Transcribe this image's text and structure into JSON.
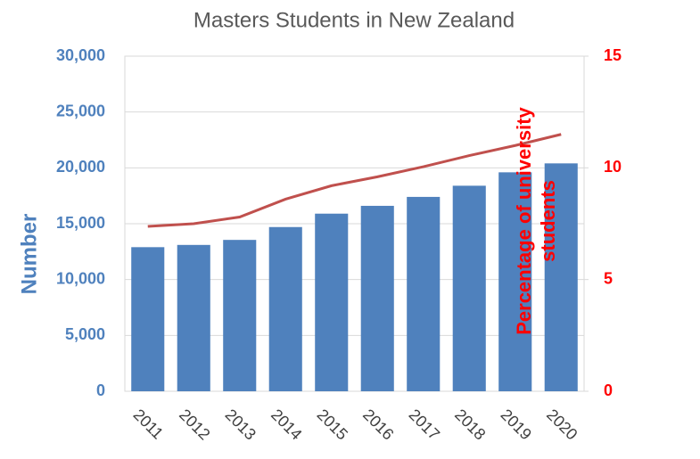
{
  "chart_data": {
    "type": "bar",
    "title": "Masters Students in New Zealand",
    "ylabel": "Number",
    "y2label": "Percentage of university students",
    "categories": [
      "2011",
      "2012",
      "2013",
      "2014",
      "2015",
      "2016",
      "2017",
      "2018",
      "2019",
      "2020"
    ],
    "series": [
      {
        "type": "bar",
        "color": "#4f81bd",
        "values": [
          12900,
          13100,
          13550,
          14700,
          15900,
          16600,
          17400,
          18400,
          19600,
          20400
        ]
      },
      {
        "type": "line",
        "axis": "y2",
        "color": "#c0504d",
        "values": [
          7.38,
          7.5,
          7.8,
          8.6,
          9.2,
          9.6,
          10.05,
          10.55,
          11.0,
          11.5
        ]
      }
    ],
    "ylim": [
      0,
      30000
    ],
    "yticks": [
      0,
      {
        "value": 5000,
        "label": "5,000"
      },
      {
        "value": 10000,
        "label": "10,000"
      },
      {
        "value": 15000,
        "label": "15,000"
      },
      {
        "value": 20000,
        "label": "20,000"
      },
      {
        "value": 25000,
        "label": "25,000"
      },
      {
        "value": 30000,
        "label": "30,000"
      }
    ],
    "y2lim": [
      0,
      15
    ],
    "y2ticks": [
      0,
      5,
      10,
      15
    ],
    "grid": true
  }
}
